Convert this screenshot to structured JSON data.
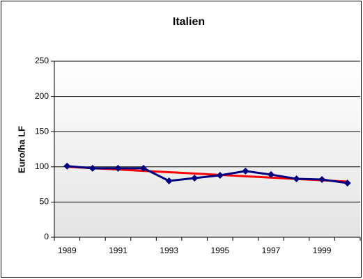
{
  "chart_data": {
    "type": "line",
    "title": "Italien",
    "y_label": "Euro/ha LF",
    "categories": [
      "1989",
      null,
      "1991",
      null,
      "1993",
      null,
      "1995",
      null,
      "1997",
      null,
      "1999",
      null
    ],
    "series": [
      {
        "color": "#000080",
        "values": [
          101,
          98,
          98,
          98,
          80,
          84,
          88,
          94,
          89,
          83,
          82,
          77
        ]
      },
      {
        "color": "#ff0000",
        "values": [
          100,
          98.1,
          96.2,
          94.3,
          92.4,
          90.5,
          88.5,
          86.6,
          84.7,
          82.8,
          80.9,
          79
        ]
      }
    ],
    "ylim": [
      0,
      250
    ],
    "yticks": [
      0,
      50,
      100,
      150,
      200,
      250
    ],
    "grid": true
  }
}
